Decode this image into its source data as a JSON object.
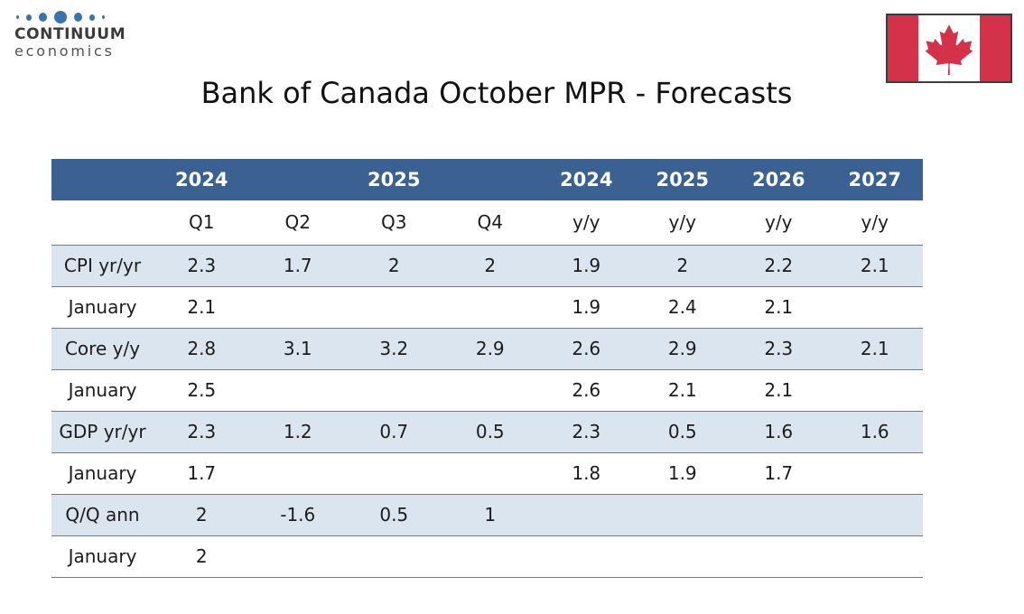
{
  "logo": {
    "name": "CONTINUUM",
    "subname": "economics",
    "dot_color": "#3c73aa"
  },
  "title": "Bank of Canada October MPR - Forecasts",
  "flag": {
    "icon": "canada-flag-icon",
    "red": "#d4314a",
    "white": "#ffffff"
  },
  "colors": {
    "header_bg": "#3a6191",
    "shaded_row_bg": "#dbe5f0",
    "row_border": "#5b80a5"
  },
  "chart_data": {
    "type": "table",
    "title": "Bank of Canada October MPR - Forecasts",
    "year_header": [
      "",
      "2024",
      "",
      "2025",
      "",
      "2024",
      "2025",
      "2026",
      "2027"
    ],
    "period_header": [
      "",
      "Q1",
      "Q2",
      "Q3",
      "Q4",
      "y/y",
      "y/y",
      "y/y",
      "y/y"
    ],
    "rows": [
      {
        "label": "CPI yr/yr",
        "shaded": true,
        "values": [
          "2.3",
          "1.7",
          "2",
          "2",
          "1.9",
          "2",
          "2.2",
          "2.1"
        ]
      },
      {
        "label": "January",
        "shaded": false,
        "values": [
          "2.1",
          "",
          "",
          "",
          "1.9",
          "2.4",
          "2.1",
          ""
        ]
      },
      {
        "label": "Core y/y",
        "shaded": true,
        "values": [
          "2.8",
          "3.1",
          "3.2",
          "2.9",
          "2.6",
          "2.9",
          "2.3",
          "2.1"
        ]
      },
      {
        "label": "January",
        "shaded": false,
        "values": [
          "2.5",
          "",
          "",
          "",
          "2.6",
          "2.1",
          "2.1",
          ""
        ]
      },
      {
        "label": "GDP yr/yr",
        "shaded": true,
        "values": [
          "2.3",
          "1.2",
          "0.7",
          "0.5",
          "2.3",
          "0.5",
          "1.6",
          "1.6"
        ]
      },
      {
        "label": "January",
        "shaded": false,
        "values": [
          "1.7",
          "",
          "",
          "",
          "1.8",
          "1.9",
          "1.7",
          ""
        ]
      },
      {
        "label": "Q/Q ann",
        "shaded": true,
        "values": [
          "2",
          "-1.6",
          "0.5",
          "1",
          "",
          "",
          "",
          ""
        ]
      },
      {
        "label": "January",
        "shaded": false,
        "values": [
          "2",
          "",
          "",
          "",
          "",
          "",
          "",
          ""
        ]
      }
    ]
  }
}
